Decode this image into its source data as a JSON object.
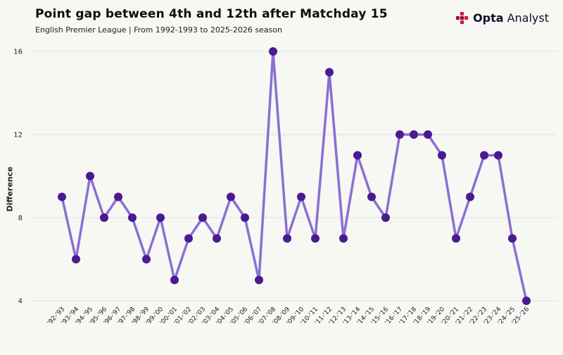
{
  "header": {
    "title": "Point gap between 4th and 12th after Matchday 15",
    "subtitle": "English Premier League | From 1992-1993 to 2025-2026 season"
  },
  "logo": {
    "bold": "Opta",
    "light": "Analyst",
    "red": "#e4063e",
    "dark_red": "#a30434",
    "deep_red": "#7c0630"
  },
  "chart_data": {
    "type": "line",
    "title": "Point gap between 4th and 12th after Matchday 15",
    "subtitle": "English Premier League | From 1992-1993 to 2025-2026 season",
    "xlabel": "",
    "ylabel": "Difference",
    "x": [
      "'92-'93",
      "'93-'94",
      "'94-'95",
      "'95-'96",
      "'96-'97",
      "'97-'98",
      "'98-'99",
      "'99-'00",
      "'00-'01",
      "'01-'02",
      "'02-'03",
      "'03-'04",
      "'04-'05",
      "'05-'06",
      "'06-'07",
      "'07-'08",
      "'08-'09",
      "'09-'10",
      "'10-'11",
      "'11-'12",
      "'12-'13",
      "'13-'14",
      "'14-'15",
      "'15-'16",
      "'16-'17",
      "'17-'18",
      "'18-'19",
      "'19-'20",
      "'20-'21",
      "'21-'22",
      "'22-'23",
      "'23-'24",
      "'24-'25",
      "'25-'26"
    ],
    "values": [
      9,
      6,
      10,
      8,
      9,
      8,
      6,
      8,
      5,
      7,
      8,
      7,
      9,
      8,
      5,
      16,
      7,
      9,
      7,
      15,
      7,
      11,
      9,
      8,
      12,
      12,
      12,
      11,
      7,
      9,
      11,
      11,
      7,
      4
    ],
    "yticks": [
      4,
      8,
      12,
      16
    ],
    "ylim": [
      4,
      16
    ],
    "grid": "horizontal",
    "legend": "none",
    "line_color": "#8b6fd2",
    "marker_color": "#4a1a8f",
    "gridline_color": "#e2e1dd",
    "background_color": "#f7f7f4"
  }
}
